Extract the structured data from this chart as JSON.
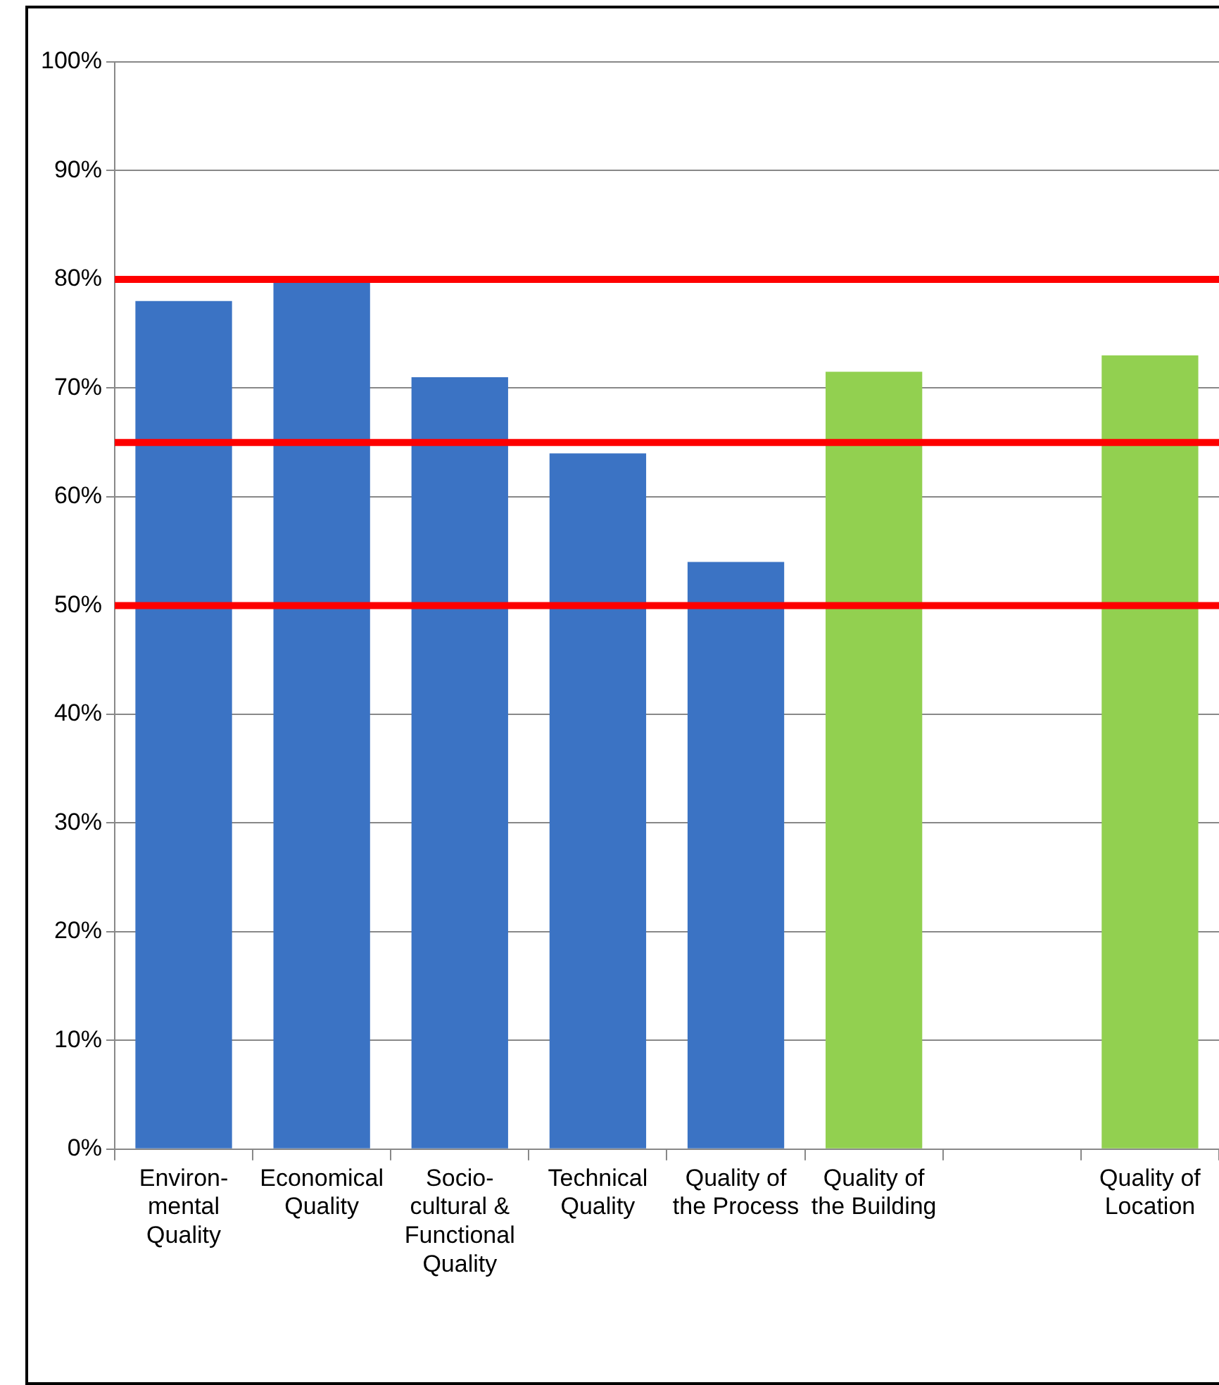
{
  "chart_data": {
    "type": "bar",
    "categories": [
      "Environ-\nmental\nQuality",
      "Economical\nQuality",
      "Socio-\ncultural &\nFunctional\nQuality",
      "Technical\nQuality",
      "Quality of\nthe Process",
      "Quality of\nthe Building",
      null,
      "Quality of\nLocation"
    ],
    "values": [
      78,
      80,
      71,
      64,
      54,
      71.5,
      null,
      73
    ],
    "colors": [
      "#3b73c4",
      "#3b73c4",
      "#3b73c4",
      "#3b73c4",
      "#3b73c4",
      "#92d050",
      "#92d050",
      "#92d050"
    ],
    "ylim": [
      0,
      100
    ],
    "yticks": [
      {
        "value": 0,
        "label": "0%"
      },
      {
        "value": 10,
        "label": "10%"
      },
      {
        "value": 20,
        "label": "20%"
      },
      {
        "value": 30,
        "label": "30%"
      },
      {
        "value": 40,
        "label": "40%"
      },
      {
        "value": 50,
        "label": "50%"
      },
      {
        "value": 60,
        "label": "60%"
      },
      {
        "value": 70,
        "label": "70%"
      },
      {
        "value": 80,
        "label": "80%"
      },
      {
        "value": 90,
        "label": "90%"
      },
      {
        "value": 100,
        "label": "100%"
      }
    ],
    "grid": "y",
    "ref_lines": [
      {
        "axis": "y",
        "value": 80,
        "color": "#ff0000"
      },
      {
        "axis": "y",
        "value": 65,
        "color": "#fe0000"
      },
      {
        "axis": "y",
        "value": 50,
        "color": "#fd0000"
      }
    ]
  }
}
